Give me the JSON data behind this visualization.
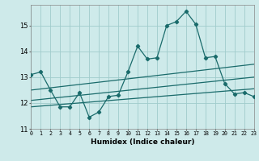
{
  "xlabel": "Humidex (Indice chaleur)",
  "x": [
    0,
    1,
    2,
    3,
    4,
    5,
    6,
    7,
    8,
    9,
    10,
    11,
    12,
    13,
    14,
    15,
    16,
    17,
    18,
    19,
    20,
    21,
    22,
    23
  ],
  "line1": [
    13.1,
    13.2,
    12.5,
    11.85,
    11.85,
    12.4,
    11.45,
    11.65,
    12.25,
    12.3,
    13.2,
    14.2,
    13.7,
    13.75,
    15.0,
    15.15,
    15.55,
    15.05,
    13.75,
    13.8,
    12.75,
    12.35,
    12.4,
    12.25
  ],
  "trend1": [
    12.5,
    13.5
  ],
  "trend2": [
    12.1,
    13.0
  ],
  "trend3": [
    11.85,
    12.55
  ],
  "color": "#1a6b6b",
  "bg_color": "#ceeaea",
  "grid_color": "#a0cccc",
  "ylim": [
    11.0,
    15.8
  ],
  "yticks": [
    11,
    12,
    13,
    14,
    15
  ],
  "xlim": [
    0,
    23
  ]
}
